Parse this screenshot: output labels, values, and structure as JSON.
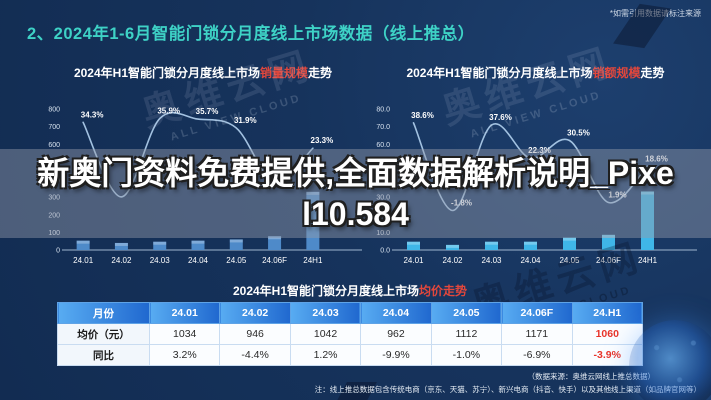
{
  "header": {
    "title": "2、2024年1-6月智能门锁分月度线上市场数据（线上推总）",
    "source_note": "*如需引用数据请标注来源"
  },
  "overlay": {
    "line1": "新奥门资料免费提供,全面数据解析说明_Pixe",
    "line2": "l10.584"
  },
  "watermark": {
    "brand_cn": "奥维云网",
    "brand_en": "ALL VIEW CLOUD"
  },
  "footer": {
    "source": "（数据来源：奥维云网线上推总数据）",
    "note": "注：线上推总数据包含传统电商（京东、天猫、苏宁）、新兴电商（抖音、快手）以及其他线上渠道（如品牌官网等）"
  },
  "colors": {
    "title_accent": "#3ed2c6",
    "highlight_red": "#e2473c",
    "table_value_red": "#e8342a",
    "left_bar": "#4e8ac9",
    "right_bar": "#3fb6e8",
    "trend_line": "#aac9e8"
  },
  "chart_data": [
    {
      "type": "bar",
      "title_prefix": "2024年H1智能门锁分月度线上市场",
      "title_highlight": "销量规模",
      "title_suffix": "走势",
      "categories": [
        "24.01",
        "24.02",
        "24.03",
        "24.04",
        "24.05",
        "24.06F",
        "24H1"
      ],
      "bar_values": [
        53,
        40,
        47,
        53,
        60,
        78,
        330
      ],
      "line_values": [
        34.3,
        2.6,
        35.9,
        35.7,
        31.9,
        8.8,
        23.3
      ],
      "line_labels": [
        "34.3%",
        null,
        "35.9%",
        "35.7%",
        "31.9%",
        null,
        "23.3%"
      ],
      "ylim": [
        0,
        800
      ],
      "ytick_step": 100,
      "ytick_format": "int",
      "line_range": [
        -20,
        40
      ],
      "legend": "none",
      "grid": false
    },
    {
      "type": "bar",
      "title_prefix": "2024年H1智能门锁分月度线上市场",
      "title_highlight": "销额规模",
      "title_suffix": "走势",
      "categories": [
        "24.01",
        "24.02",
        "24.03",
        "24.04",
        "24.05",
        "24.06F",
        "24H1"
      ],
      "bar_values": [
        4.7,
        2.9,
        4.7,
        4.7,
        7.0,
        8.6,
        33.2
      ],
      "line_values": [
        38.6,
        -1.8,
        37.6,
        22.3,
        30.5,
        1.9,
        18.6
      ],
      "line_labels": [
        "38.6%",
        "-1.8%",
        "37.6%",
        "22.3%",
        "30.5%",
        "1.9%",
        "18.6%"
      ],
      "ylim": [
        0,
        80
      ],
      "ytick_step": 10,
      "ytick_format": "1dp",
      "line_range": [
        -20,
        45
      ],
      "legend": "none",
      "grid": false
    },
    {
      "type": "table",
      "title_prefix": "2024年H1智能门锁分月度线上市场",
      "title_highlight": "均价走势",
      "title_suffix": "",
      "columns": [
        "月份",
        "24.01",
        "24.02",
        "24.03",
        "24.04",
        "24.05",
        "24.06F",
        "24.H1"
      ],
      "rows": [
        {
          "label": "均价（元）",
          "values": [
            "1034",
            "946",
            "1042",
            "962",
            "1112",
            "1171",
            "1060"
          ]
        },
        {
          "label": "同比",
          "values": [
            "3.2%",
            "-4.4%",
            "1.2%",
            "-9.9%",
            "-1.0%",
            "-6.9%",
            "-3.9%"
          ]
        }
      ]
    }
  ]
}
